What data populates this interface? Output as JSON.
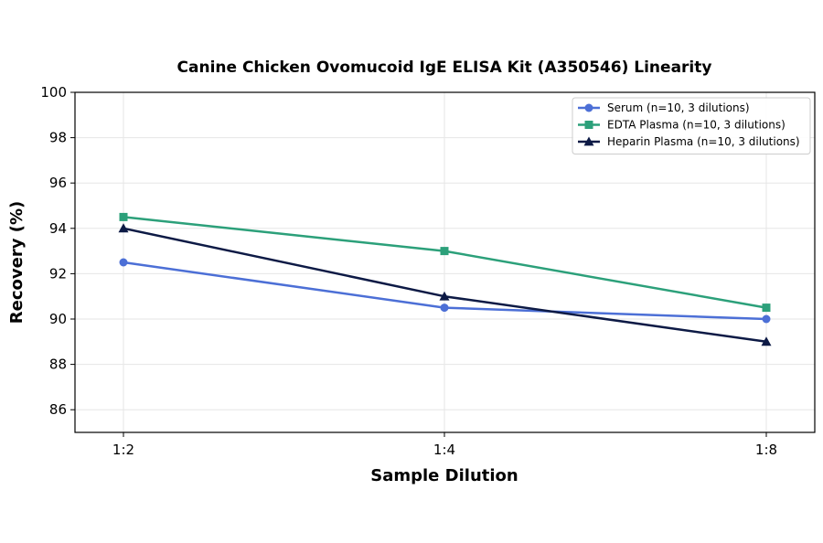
{
  "chart_data": {
    "type": "line",
    "title": "Canine Chicken Ovomucoid IgE ELISA Kit (A350546) Linearity",
    "xlabel": "Sample Dilution",
    "ylabel": "Recovery (%)",
    "categories": [
      "1:2",
      "1:4",
      "1:8"
    ],
    "ylim": [
      85,
      100
    ],
    "yticks": [
      86,
      88,
      90,
      92,
      94,
      96,
      98,
      100
    ],
    "grid": true,
    "legend_position": "top-right",
    "series": [
      {
        "name": "Serum (n=10, 3 dilutions)",
        "values": [
          92.5,
          90.5,
          90.0
        ],
        "color": "#4c6fd6",
        "marker": "circle"
      },
      {
        "name": "EDTA Plasma (n=10, 3 dilutions)",
        "values": [
          94.5,
          93.0,
          90.5
        ],
        "color": "#2ca07a",
        "marker": "square"
      },
      {
        "name": "Heparin Plasma (n=10, 3 dilutions)",
        "values": [
          94.0,
          91.0,
          89.0
        ],
        "color": "#0d1a45",
        "marker": "triangle"
      }
    ]
  }
}
